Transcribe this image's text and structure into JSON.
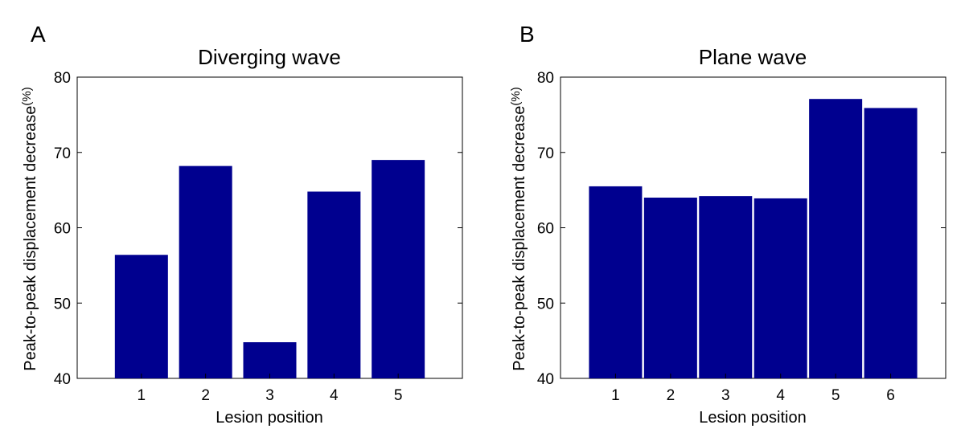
{
  "chart_data": [
    {
      "type": "bar",
      "panel_label": "A",
      "title": "Diverging wave",
      "xlabel": "Lesion position",
      "ylabel": "Peak-to-peak displacement decrease",
      "ylabel_unit": "(%)",
      "categories": [
        "1",
        "2",
        "3",
        "4",
        "5"
      ],
      "values": [
        56.4,
        68.2,
        44.8,
        64.8,
        69.0
      ],
      "ylim": [
        40,
        80
      ],
      "yticks": [
        40,
        50,
        60,
        70,
        80
      ],
      "color": "#00008f",
      "grid": false
    },
    {
      "type": "bar",
      "panel_label": "B",
      "title": "Plane wave",
      "xlabel": "Lesion position",
      "ylabel": "Peak-to-peak displacement decrease",
      "ylabel_unit": "(%)",
      "categories": [
        "1",
        "2",
        "3",
        "4",
        "5",
        "6"
      ],
      "values": [
        65.5,
        64.0,
        64.2,
        63.9,
        77.1,
        75.9
      ],
      "ylim": [
        40,
        80
      ],
      "yticks": [
        40,
        50,
        60,
        70,
        80
      ],
      "color": "#00008f",
      "grid": false
    }
  ]
}
